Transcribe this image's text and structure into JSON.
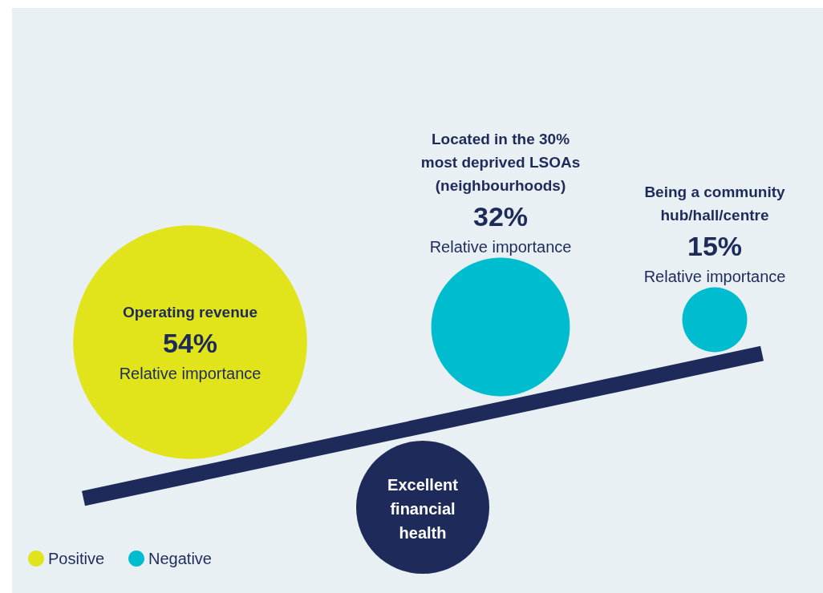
{
  "chart_data": {
    "type": "other",
    "title": "Excellent financial health",
    "ylabel": "Relative importance",
    "categories": [
      "Operating revenue",
      "Located in the 30% most deprived LSOAs (neighbourhoods)",
      "Being a community hub/hall/centre"
    ],
    "series": [
      {
        "name": "Positive",
        "color": "#e1e41a",
        "values": [
          54,
          null,
          null
        ],
        "value_labels": [
          "54%",
          null,
          null
        ]
      },
      {
        "name": "Negative",
        "color": "#00bccf",
        "values": [
          null,
          32,
          15
        ],
        "value_labels": [
          null,
          "32%",
          "15%"
        ]
      }
    ],
    "legend": "bottom left"
  }
}
